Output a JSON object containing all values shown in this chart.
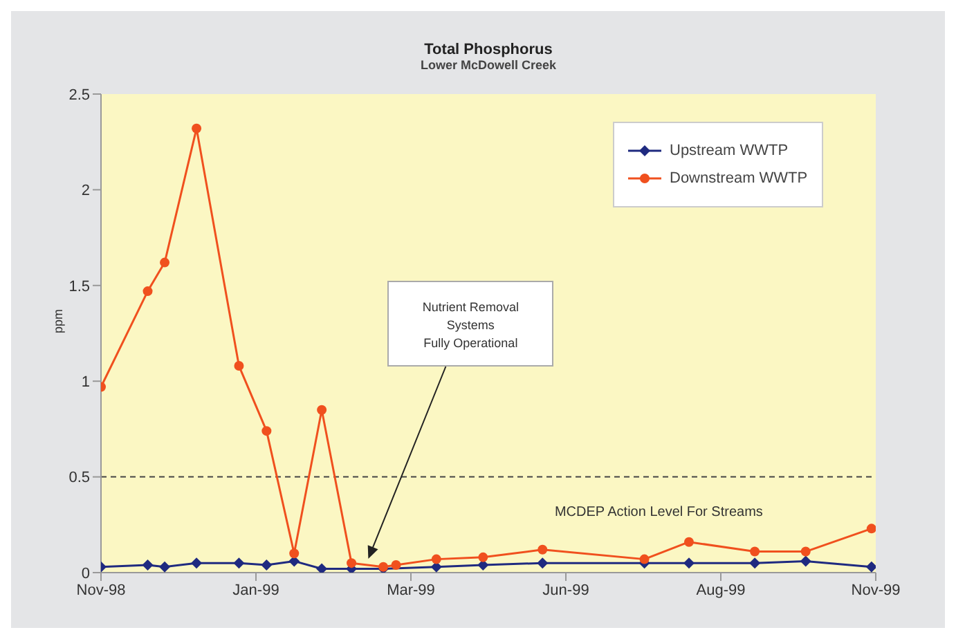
{
  "chart_data": {
    "type": "line",
    "title": "Total Phosphorus",
    "subtitle": "Lower McDowell Creek",
    "ylabel": "ppm",
    "xlim": [
      "1998-11-01",
      "1999-11-01"
    ],
    "xticks": [
      {
        "value": "1998-11-01",
        "label": "Nov-98"
      },
      {
        "value": "1999-01-13",
        "label": "Jan-99"
      },
      {
        "value": "1999-03-27",
        "label": "Mar-99"
      },
      {
        "value": "1999-06-08",
        "label": "Jun-99"
      },
      {
        "value": "1999-08-20",
        "label": "Aug-99"
      },
      {
        "value": "1999-11-01",
        "label": "Nov-99"
      }
    ],
    "ylim": [
      0,
      2.5
    ],
    "yticks": [
      0,
      0.5,
      1,
      1.5,
      2,
      2.5
    ],
    "grid": false,
    "legend": "top right",
    "line_style": "solid",
    "series": [
      {
        "name": "Upstream WWTP",
        "color": "#1f2a80",
        "marker": "diamond",
        "x": [
          "1998-11-01",
          "1998-11-23",
          "1998-12-01",
          "1998-12-16",
          "1999-01-05",
          "1999-01-18",
          "1999-01-31",
          "1999-02-13",
          "1999-02-27",
          "1999-03-14",
          "1999-04-08",
          "1999-04-30",
          "1999-05-28",
          "1999-07-15",
          "1999-08-05",
          "1999-09-05",
          "1999-09-29",
          "1999-10-30"
        ],
        "values": [
          0.03,
          0.04,
          0.03,
          0.05,
          0.05,
          0.04,
          0.06,
          0.02,
          0.02,
          0.02,
          0.03,
          0.04,
          0.05,
          0.05,
          0.05,
          0.05,
          0.06,
          0.03
        ]
      },
      {
        "name": "Downstream WWTP",
        "color": "#f0501e",
        "marker": "circle",
        "x": [
          "1998-11-01",
          "1998-11-23",
          "1998-12-01",
          "1998-12-16",
          "1999-01-05",
          "1999-01-18",
          "1999-01-31",
          "1999-02-13",
          "1999-02-27",
          "1999-03-14",
          "1999-03-20",
          "1999-04-08",
          "1999-04-30",
          "1999-05-28",
          "1999-07-15",
          "1999-08-05",
          "1999-09-05",
          "1999-09-29",
          "1999-10-30"
        ],
        "values": [
          0.97,
          1.47,
          1.62,
          2.32,
          1.08,
          0.74,
          0.1,
          0.85,
          0.05,
          0.03,
          0.04,
          0.07,
          0.08,
          0.12,
          0.07,
          0.16,
          0.11,
          0.11,
          0.23
        ]
      }
    ],
    "ref_lines": [
      {
        "axis": "y",
        "value": 0.5,
        "label": "MCDEP Action Level For Streams",
        "color": "#444444",
        "line_style": "dashed"
      }
    ],
    "annotations": [
      "Nutrient Removal\nSystems\nFully Operational"
    ]
  }
}
